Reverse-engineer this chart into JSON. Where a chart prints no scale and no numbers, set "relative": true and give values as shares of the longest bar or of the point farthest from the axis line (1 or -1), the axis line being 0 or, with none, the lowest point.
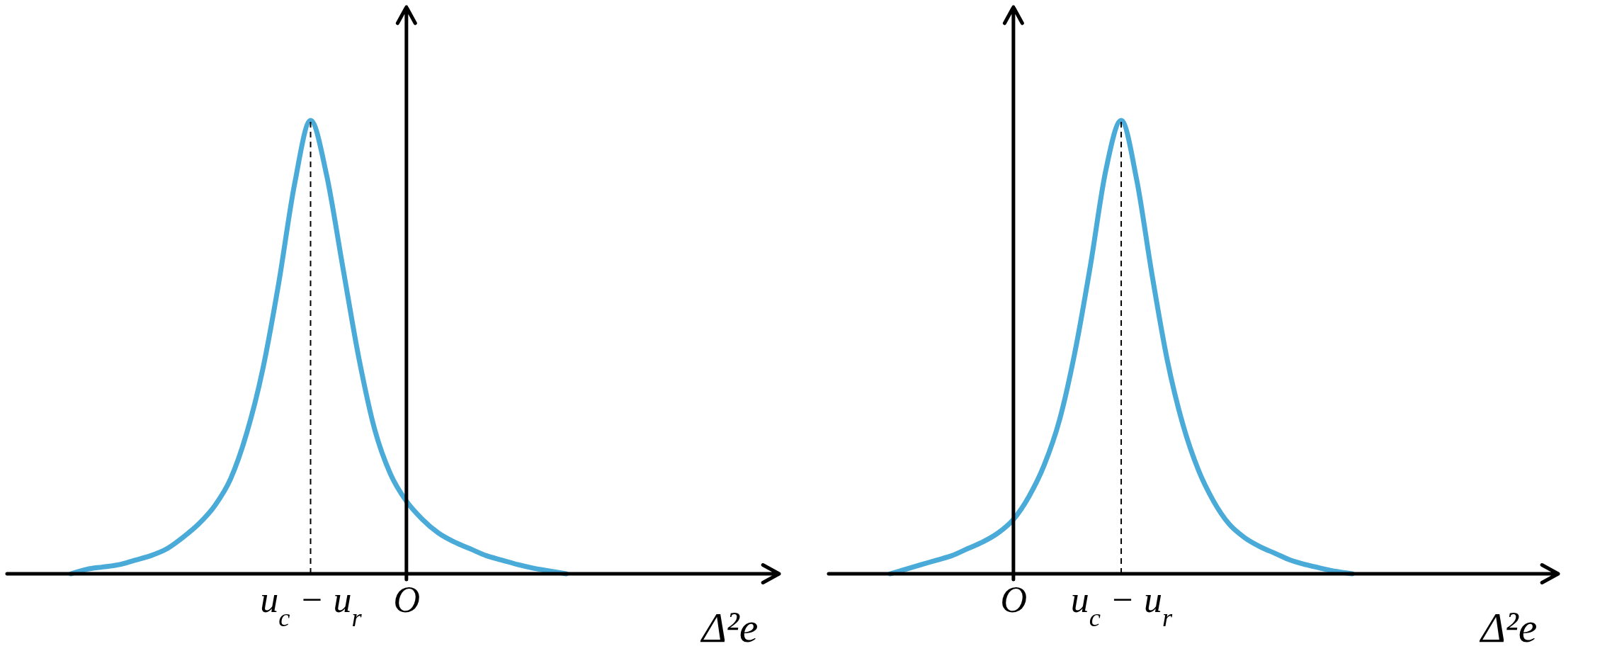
{
  "chart_data": [
    {
      "type": "line",
      "relative": true,
      "xlabel": "Δ²e",
      "marker": "none",
      "line_style": "solid",
      "grid": false,
      "categories": [
        null,
        null,
        null,
        null,
        null,
        null,
        null,
        null,
        null,
        null,
        null,
        null,
        null,
        null,
        null,
        "u$_{c}$ − u$_{r}$",
        null,
        null,
        null,
        null,
        null,
        "O",
        null,
        null,
        null,
        null,
        null,
        null,
        null,
        null,
        null,
        null
      ],
      "series": [
        {
          "color": "#4aaad8",
          "values": [
            0,
            0.01,
            0.015,
            0.02,
            0.03,
            0.04,
            0.055,
            0.08,
            0.11,
            0.15,
            0.21,
            0.31,
            0.45,
            0.64,
            0.86,
            1,
            0.88,
            0.68,
            0.48,
            0.32,
            0.22,
            0.16,
            0.12,
            0.09,
            0.07,
            0.055,
            0.04,
            0.03,
            0.02,
            0.012,
            0.006,
            0
          ]
        }
      ],
      "ref_lines": [
        {
          "axis": "x",
          "value": "u$_{c}$ − u$_{r}$",
          "line_style": "dashed",
          "color": "#000000"
        }
      ]
    },
    {
      "type": "line",
      "relative": true,
      "xlabel": "Δ²e",
      "marker": "none",
      "line_style": "solid",
      "grid": false,
      "categories": [
        null,
        null,
        null,
        null,
        null,
        null,
        null,
        null,
        "O",
        null,
        null,
        null,
        null,
        null,
        null,
        "u$_{c}$ − u$_{r}$",
        null,
        null,
        null,
        null,
        null,
        null,
        null,
        null,
        null,
        null,
        null,
        null,
        null,
        null,
        null
      ],
      "series": [
        {
          "color": "#4aaad8",
          "values": [
            0,
            0.01,
            0.02,
            0.03,
            0.04,
            0.055,
            0.07,
            0.09,
            0.12,
            0.17,
            0.24,
            0.34,
            0.49,
            0.68,
            0.89,
            1,
            0.87,
            0.66,
            0.47,
            0.33,
            0.23,
            0.16,
            0.11,
            0.08,
            0.06,
            0.045,
            0.03,
            0.02,
            0.012,
            0.005,
            0
          ]
        }
      ],
      "ref_lines": [
        {
          "axis": "x",
          "value": "u$_{c}$ − u$_{r}$",
          "line_style": "dashed",
          "color": "#000000"
        }
      ]
    }
  ]
}
